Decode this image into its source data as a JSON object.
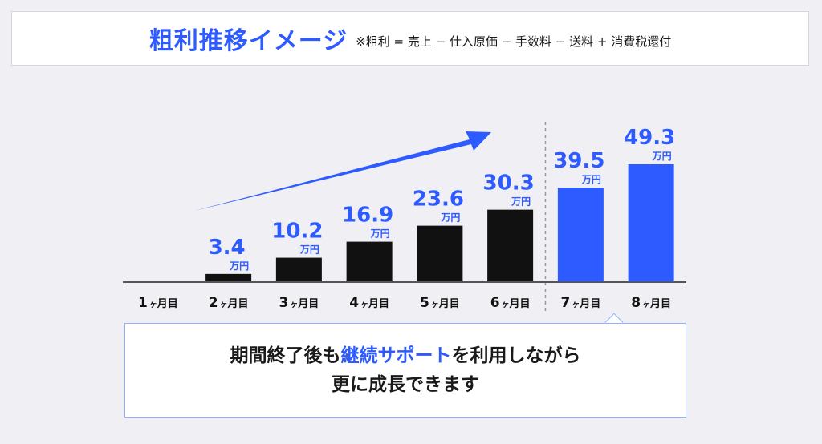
{
  "header": {
    "title": "粗利推移イメージ",
    "note": "※粗利 = 売上 − 仕入原価 − 手数料 − 送料 + 消費税還付"
  },
  "chart_data": {
    "type": "bar",
    "title": "粗利推移イメージ",
    "categories": [
      "1ヶ月目",
      "2ヶ月目",
      "3ヶ月目",
      "4ヶ月目",
      "5ヶ月目",
      "6ヶ月目",
      "7ヶ月目",
      "8ヶ月目"
    ],
    "category_numbers": [
      "1",
      "2",
      "3",
      "4",
      "5",
      "6",
      "7",
      "8"
    ],
    "category_suffix": "ヶ",
    "category_unit": "月目",
    "values": [
      0,
      3.4,
      10.2,
      16.9,
      23.6,
      30.3,
      39.5,
      49.3
    ],
    "value_labels": [
      "",
      "3.4",
      "10.2",
      "16.9",
      "23.6",
      "30.3",
      "39.5",
      "49.3"
    ],
    "unit": "万円",
    "highlight_from_index": 6,
    "ylim": [
      0,
      60
    ],
    "colors": {
      "normal": "#111111",
      "highlight": "#2d5bff",
      "arrow": "#2d5bff"
    }
  },
  "message": {
    "line1_pre": "期間終了後も",
    "line1_accent": "継続サポート",
    "line1_post": "を利用しながら",
    "line2": "更に成長できます"
  }
}
